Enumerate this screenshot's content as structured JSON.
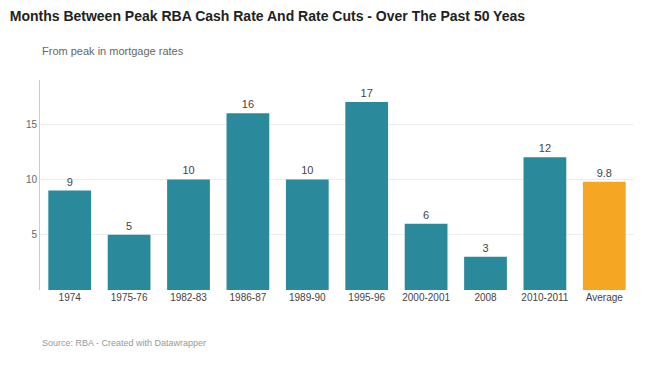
{
  "chart_data": {
    "type": "bar",
    "title": "Months Between Peak RBA Cash Rate And Rate Cuts - Over The Past 50 Yeas",
    "subtitle": "From peak in mortgage rates",
    "source": "Source: RBA - Created with Datawrapper",
    "categories": [
      "1974",
      "1975-76",
      "1982-83",
      "1986-87",
      "1989-90",
      "1995-96",
      "2000-2001",
      "2008",
      "2010-2011",
      "Average"
    ],
    "values": [
      9,
      5,
      10,
      16,
      10,
      17,
      6,
      3,
      12,
      9.8
    ],
    "colors": [
      "#2a8a9c",
      "#2a8a9c",
      "#2a8a9c",
      "#2a8a9c",
      "#2a8a9c",
      "#2a8a9c",
      "#2a8a9c",
      "#2a8a9c",
      "#2a8a9c",
      "#f5a623"
    ],
    "ylim": [
      0,
      19
    ],
    "yticks": [
      5,
      10,
      15
    ],
    "grid": true,
    "data_labels": true
  }
}
